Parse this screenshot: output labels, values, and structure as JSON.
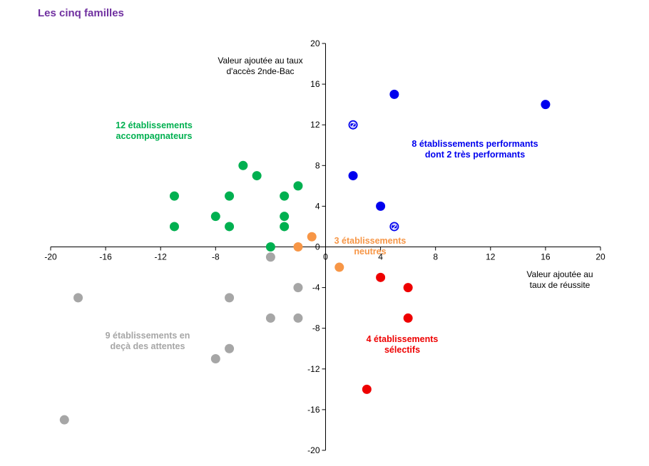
{
  "page": {
    "title": "Les cinq familles"
  },
  "chart_data": {
    "type": "scatter",
    "xlabel": [
      "Valeur ajoutée au",
      "taux de réussite"
    ],
    "ylabel": [
      "Valeur ajoutée au taux",
      "d'accès 2nde-Bac"
    ],
    "xlim": [
      -20,
      20
    ],
    "ylim": [
      -20,
      20
    ],
    "xticks": [
      -20,
      -16,
      -12,
      -8,
      -4,
      0,
      4,
      8,
      12,
      16,
      20
    ],
    "yticks": [
      20,
      16,
      12,
      8,
      4,
      0,
      -4,
      -8,
      -12,
      -16,
      -20
    ],
    "grid": false,
    "series": [
      {
        "key": "performants",
        "color": "#0000ee",
        "label": [
          "8 établissements performants",
          "dont 2 très performants"
        ],
        "points": [
          [
            5,
            15
          ],
          [
            16,
            14
          ],
          [
            2,
            12,
            "2"
          ],
          [
            2,
            7
          ],
          [
            4,
            4
          ],
          [
            5,
            2,
            "2"
          ]
        ]
      },
      {
        "key": "accompagnateurs",
        "color": "#00b050",
        "label": [
          "12 établissements",
          "accompagnateurs"
        ],
        "points": [
          [
            -6,
            8
          ],
          [
            -5,
            7
          ],
          [
            -11,
            5
          ],
          [
            -7,
            5
          ],
          [
            -3,
            5
          ],
          [
            -2,
            6
          ],
          [
            -8,
            3
          ],
          [
            -3,
            3
          ],
          [
            -11,
            2
          ],
          [
            -7,
            2
          ],
          [
            -3,
            2
          ],
          [
            -4,
            0
          ]
        ]
      },
      {
        "key": "neutres",
        "color": "#f79646",
        "label": [
          "3 établissements",
          "neutres"
        ],
        "points": [
          [
            -1,
            1
          ],
          [
            -2,
            0
          ],
          [
            1,
            -2
          ]
        ]
      },
      {
        "key": "selectifs",
        "color": "#ee0000",
        "label": [
          "4 établissements",
          "sélectifs"
        ],
        "points": [
          [
            4,
            -3
          ],
          [
            6,
            -4
          ],
          [
            6,
            -7
          ],
          [
            3,
            -14
          ]
        ]
      },
      {
        "key": "en_deca",
        "color": "#a6a6a6",
        "label": [
          "9 établissements en",
          "deçà des attentes"
        ],
        "points": [
          [
            -18,
            -5
          ],
          [
            -7,
            -5
          ],
          [
            -2,
            -4
          ],
          [
            -4,
            -1
          ],
          [
            -4,
            -7
          ],
          [
            -2,
            -7
          ],
          [
            -7,
            -10
          ],
          [
            -8,
            -11
          ],
          [
            -19,
            -17
          ]
        ]
      }
    ]
  }
}
